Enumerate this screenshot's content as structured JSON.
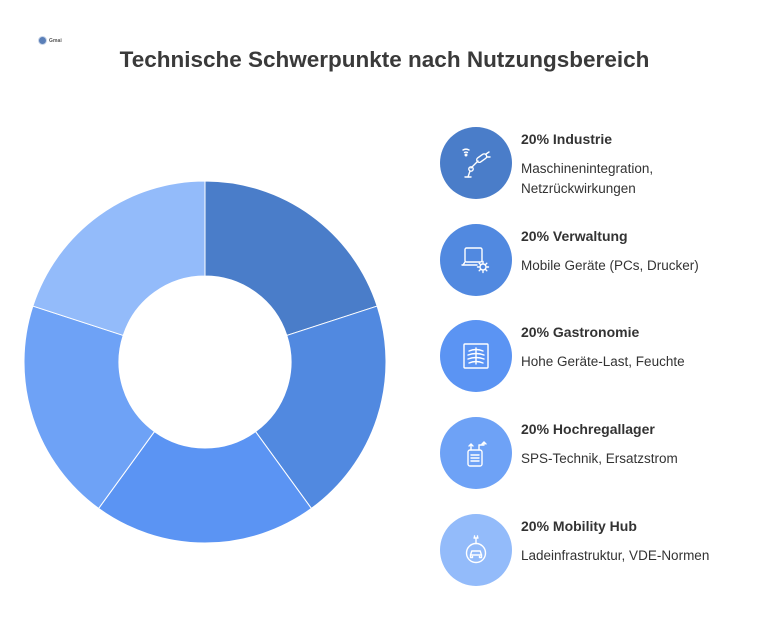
{
  "logo": {
    "text": "Gmai"
  },
  "chart_data": {
    "type": "pie",
    "title": "Technische Schwerpunkte nach Nutzungsbereich",
    "categories": [
      "Industrie",
      "Verwaltung",
      "Gastronomie",
      "Hochregallager",
      "Mobility Hub"
    ],
    "values": [
      20,
      20,
      20,
      20,
      20
    ],
    "unit": "%",
    "colors": [
      "#4a7dc9",
      "#5189e0",
      "#5b94f3",
      "#6ea2f6",
      "#93bbfa"
    ],
    "legend_placement": "right"
  },
  "legend": [
    {
      "label": "20% Industrie",
      "desc": "Maschinenintegration, Netzrückwirkungen",
      "color": "#4a7dc9",
      "icon": "robot-arm-icon"
    },
    {
      "label": "20% Verwaltung",
      "desc": "Mobile Geräte (PCs, Drucker)",
      "color": "#5189e0",
      "icon": "laptop-gear-icon"
    },
    {
      "label": "20% Gastronomie",
      "desc": "Hohe Geräte-Last, Feuchte",
      "color": "#5b94f3",
      "icon": "xray-panel-icon"
    },
    {
      "label": "20% Hochregallager",
      "desc": "SPS-Technik, Ersatzstrom",
      "color": "#6ea2f6",
      "icon": "battery-plug-icon"
    },
    {
      "label": "20% Mobility Hub",
      "desc": "Ladeinfrastruktur, VDE-Normen",
      "color": "#93bbfa",
      "icon": "ev-charging-icon"
    }
  ]
}
